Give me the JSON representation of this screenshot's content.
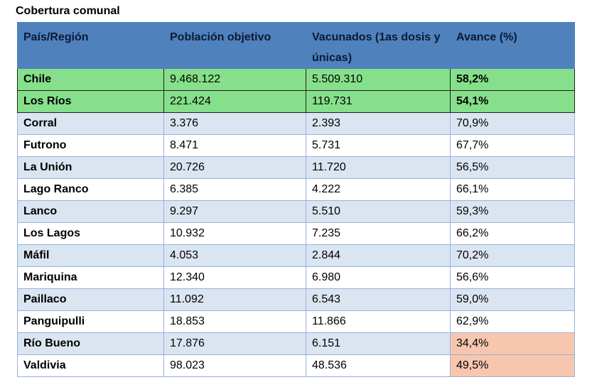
{
  "caption": "Cobertura comunal",
  "table": {
    "headers": [
      "País/Región",
      "Población objetivo",
      "Vacunados (1as dosis y únicas)",
      "Avance (%)"
    ],
    "rows": [
      {
        "region": "Chile",
        "poblacion": "9.468.122",
        "vacunados": "5.509.310",
        "avance": "58,2%",
        "kind": "summary",
        "highlight": false
      },
      {
        "region": "Los Ríos",
        "poblacion": "221.424",
        "vacunados": "119.731",
        "avance": "54,1%",
        "kind": "summary",
        "highlight": false
      },
      {
        "region": "Corral",
        "poblacion": "3.376",
        "vacunados": "2.393",
        "avance": "70,9%",
        "kind": "band",
        "highlight": false
      },
      {
        "region": "Futrono",
        "poblacion": "8.471",
        "vacunados": "5.731",
        "avance": "67,7%",
        "kind": "plain",
        "highlight": false
      },
      {
        "region": "La Unión",
        "poblacion": "20.726",
        "vacunados": "11.720",
        "avance": "56,5%",
        "kind": "band",
        "highlight": false
      },
      {
        "region": "Lago Ranco",
        "poblacion": "6.385",
        "vacunados": "4.222",
        "avance": "66,1%",
        "kind": "plain",
        "highlight": false
      },
      {
        "region": "Lanco",
        "poblacion": "9.297",
        "vacunados": "5.510",
        "avance": "59,3%",
        "kind": "band",
        "highlight": false
      },
      {
        "region": "Los Lagos",
        "poblacion": "10.932",
        "vacunados": "7.235",
        "avance": "66,2%",
        "kind": "plain",
        "highlight": false
      },
      {
        "region": "Máfil",
        "poblacion": "4.053",
        "vacunados": "2.844",
        "avance": "70,2%",
        "kind": "band",
        "highlight": false
      },
      {
        "region": "Mariquina",
        "poblacion": "12.340",
        "vacunados": "6.980",
        "avance": "56,6%",
        "kind": "plain",
        "highlight": false
      },
      {
        "region": "Paillaco",
        "poblacion": "11.092",
        "vacunados": "6.543",
        "avance": "59,0%",
        "kind": "band",
        "highlight": false
      },
      {
        "region": "Panguipulli",
        "poblacion": "18.853",
        "vacunados": "11.866",
        "avance": "62,9%",
        "kind": "plain",
        "highlight": false
      },
      {
        "region": "Río Bueno",
        "poblacion": "17.876",
        "vacunados": "6.151",
        "avance": "34,4%",
        "kind": "band",
        "highlight": true
      },
      {
        "region": "Valdivia",
        "poblacion": "98.023",
        "vacunados": "48.536",
        "avance": "49,5%",
        "kind": "plain",
        "highlight": true
      }
    ]
  },
  "colors": {
    "header": "#4f81bd",
    "band": "#dbe5f1",
    "summary": "#86e08b",
    "low_coverage": "#f8c6ae"
  }
}
